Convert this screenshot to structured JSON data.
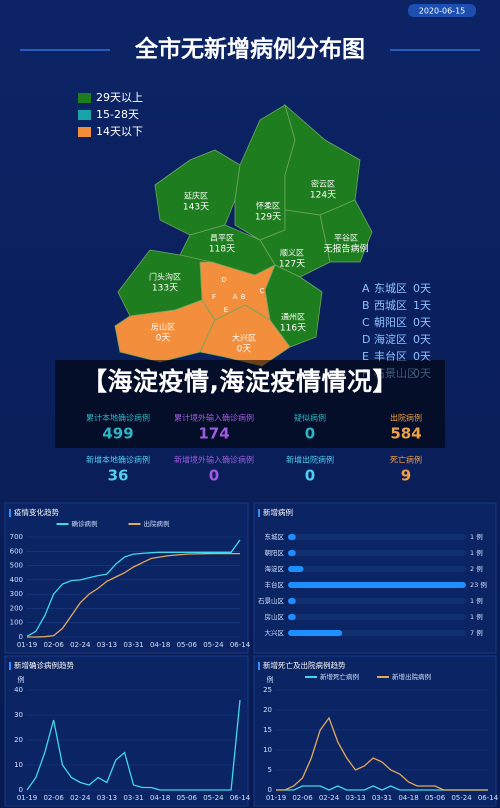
{
  "header": {
    "date": "2020-06-15",
    "title": "全市无新增病例分布图"
  },
  "legend": [
    {
      "label": "29天以上",
      "color": "#1e7d1e"
    },
    {
      "label": "15-28天",
      "color": "#15a5a8"
    },
    {
      "label": "14天以下",
      "color": "#f28e3c"
    }
  ],
  "map": {
    "districts": [
      {
        "name": "延庆区",
        "status": "143天"
      },
      {
        "name": "怀柔区",
        "status": "129天"
      },
      {
        "name": "密云区",
        "status": "124天"
      },
      {
        "name": "昌平区",
        "status": "118天"
      },
      {
        "name": "平谷区",
        "status": "无报告病例"
      },
      {
        "name": "顺义区",
        "status": "127天"
      },
      {
        "name": "门头沟区",
        "status": "133天"
      },
      {
        "name": "通州区",
        "status": "116天"
      },
      {
        "name": "房山区",
        "status": "0天"
      },
      {
        "name": "大兴区",
        "status": "0天"
      }
    ],
    "urban_letters": [
      "D",
      "B",
      "A",
      "C",
      "E",
      "F"
    ]
  },
  "district_list": [
    {
      "letter": "A",
      "name": "东城区",
      "status": "0天"
    },
    {
      "letter": "B",
      "name": "西城区",
      "status": "1天"
    },
    {
      "letter": "C",
      "name": "朝阳区",
      "status": "0天"
    },
    {
      "letter": "D",
      "name": "海淀区",
      "status": "0天"
    },
    {
      "letter": "E",
      "name": "丰台区",
      "status": "0天"
    },
    {
      "letter": "F",
      "name": "石景山区",
      "status": "0天"
    }
  ],
  "banner": "【海淀疫情,海淀疫情情况】",
  "stats": [
    {
      "label": "累计本地确诊病例",
      "value": 499,
      "color": "#2fb6c4"
    },
    {
      "label": "累计境外输入确诊病例",
      "value": 174,
      "color": "#a15be0"
    },
    {
      "label": "疑似病例",
      "value": 0,
      "color": "#2fb6c4"
    },
    {
      "label": "出院病例",
      "value": 584,
      "color": "#f0a048"
    },
    {
      "label": "新增本地确诊病例",
      "value": 36,
      "color": "#4fd0f0"
    },
    {
      "label": "新增境外输入确诊病例",
      "value": 0,
      "color": "#a15be0"
    },
    {
      "label": "新增出院病例",
      "value": 0,
      "color": "#4fd0f0"
    },
    {
      "label": "死亡病例",
      "value": 9,
      "color": "#f0a048"
    }
  ],
  "chart_data": [
    {
      "type": "line",
      "title": "疫情变化趋势",
      "categories": [
        "01-19",
        null,
        null,
        "02-06",
        null,
        null,
        "02-24",
        null,
        null,
        "03-13",
        null,
        null,
        "03-31",
        null,
        null,
        "04-18",
        null,
        null,
        "05-06",
        null,
        null,
        "05-24",
        null,
        null,
        "06-14"
      ],
      "series": [
        {
          "name": "确诊病例",
          "color": "#3fd8f0",
          "values": [
            5,
            40,
            150,
            300,
            370,
            395,
            400,
            415,
            430,
            440,
            510,
            560,
            580,
            585,
            590,
            593,
            593,
            593,
            593,
            593,
            593,
            593,
            593,
            593,
            680
          ]
        },
        {
          "name": "出院病例",
          "color": "#e3a95a",
          "values": [
            0,
            0,
            2,
            10,
            60,
            150,
            240,
            300,
            340,
            390,
            420,
            450,
            490,
            520,
            550,
            560,
            570,
            575,
            580,
            582,
            583,
            584,
            584,
            584,
            584
          ]
        }
      ],
      "ylim": [
        0,
        700
      ],
      "yticks": [
        0,
        100,
        200,
        300,
        400,
        500,
        600,
        700
      ],
      "grid": true
    },
    {
      "type": "hbar",
      "title": "新增病例",
      "categories": [
        "东城区",
        "朝阳区",
        "海淀区",
        "丰台区",
        "石景山区",
        "房山区",
        "大兴区"
      ],
      "values": [
        1,
        1,
        2,
        23,
        1,
        1,
        7
      ],
      "value_labels": [
        "1 例",
        "1 例",
        "2 例",
        "23 例",
        "1 例",
        "1 例",
        "7 例"
      ],
      "xlim": [
        0,
        23
      ],
      "color": "#1e8fff"
    },
    {
      "type": "line",
      "title": "新增确诊病例趋势",
      "y_unit": "例",
      "categories": [
        "01-19",
        null,
        null,
        "02-06",
        null,
        null,
        "02-24",
        null,
        null,
        "03-13",
        null,
        null,
        "03-31",
        null,
        null,
        "04-18",
        null,
        null,
        "05-06",
        null,
        null,
        "05-24",
        null,
        null,
        "06-14"
      ],
      "series": [
        {
          "color": "#3fd8f0",
          "values": [
            0,
            5,
            15,
            28,
            10,
            5,
            3,
            2,
            5,
            3,
            12,
            15,
            2,
            1,
            1,
            0,
            0,
            0,
            0,
            0,
            0,
            0,
            0,
            0,
            36
          ]
        }
      ],
      "ylim": [
        0,
        40
      ],
      "yticks": [
        0,
        10,
        20,
        30,
        40
      ],
      "grid": true
    },
    {
      "type": "line",
      "title": "新增死亡及出院病例趋势",
      "y_unit": "例",
      "categories": [
        "01-19",
        null,
        null,
        "02-06",
        null,
        null,
        "02-24",
        null,
        null,
        "03-13",
        null,
        null,
        "03-31",
        null,
        null,
        "04-18",
        null,
        null,
        "05-06",
        null,
        null,
        "05-24",
        null,
        null,
        "06-14"
      ],
      "series": [
        {
          "name": "新增死亡病例",
          "color": "#3fd8f0",
          "values": [
            0,
            0,
            0,
            1,
            1,
            1,
            0,
            1,
            0,
            0,
            0,
            1,
            0,
            1,
            0,
            0,
            0,
            0,
            0,
            0,
            0,
            0,
            0,
            0,
            0
          ]
        },
        {
          "name": "新增出院病例",
          "color": "#e3a95a",
          "values": [
            0,
            0,
            1,
            3,
            8,
            15,
            18,
            12,
            8,
            5,
            6,
            8,
            7,
            5,
            4,
            2,
            1,
            1,
            1,
            0,
            0,
            0,
            0,
            0,
            0
          ]
        }
      ],
      "ylim": [
        0,
        25
      ],
      "yticks": [
        0,
        5,
        10,
        15,
        20,
        25
      ],
      "grid": true
    }
  ]
}
